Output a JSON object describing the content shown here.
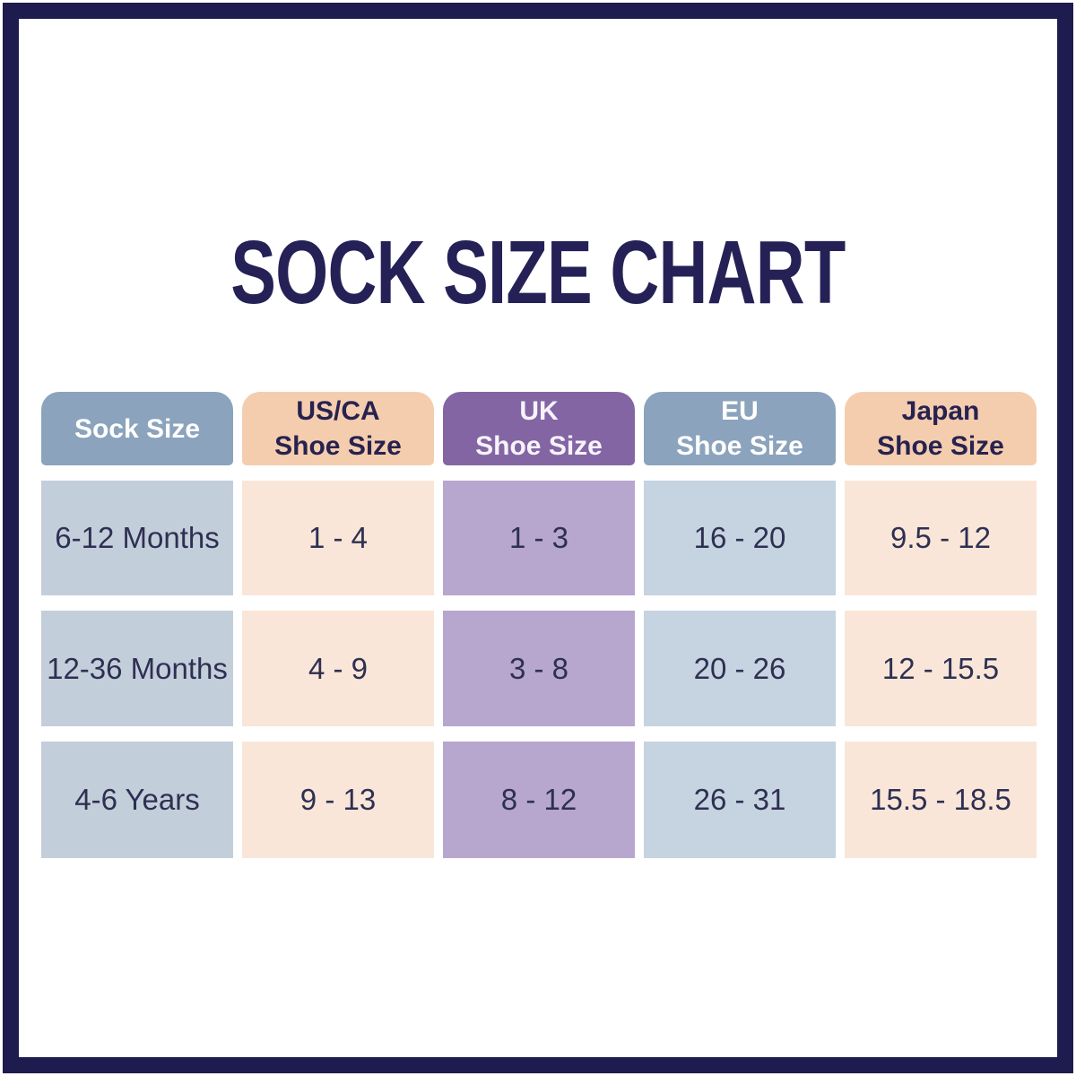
{
  "page": {
    "title": "SOCK SIZE CHART",
    "title_color": "#252157",
    "frame_color": "#1e1b4e",
    "background": "#ffffff"
  },
  "table": {
    "columns": [
      {
        "id": "sock-size",
        "header_lines": [
          "Sock Size"
        ],
        "header_bg": "#8ba3bc",
        "header_text": "#ffffff",
        "body_bg": "#c3cedb"
      },
      {
        "id": "usca-shoe-size",
        "header_lines": [
          "US/CA",
          "Shoe Size"
        ],
        "header_bg": "#f4cdaf",
        "header_text": "#27224f",
        "body_bg": "#f9e6d8"
      },
      {
        "id": "uk-shoe-size",
        "header_lines": [
          "UK",
          "Shoe Size"
        ],
        "header_bg": "#8465a4",
        "header_text": "#f7f3fa",
        "body_bg": "#b7a6cd"
      },
      {
        "id": "eu-shoe-size",
        "header_lines": [
          "EU",
          "Shoe Size"
        ],
        "header_bg": "#8ba3bc",
        "header_text": "#ffffff",
        "body_bg": "#c6d3e0"
      },
      {
        "id": "japan-shoe-size",
        "header_lines": [
          "Japan",
          "Shoe Size"
        ],
        "header_bg": "#f4cdaf",
        "header_text": "#27224f",
        "body_bg": "#f9e6d8"
      }
    ],
    "rows": [
      [
        "6-12 Months",
        "1 - 4",
        "1 - 3",
        "16 - 20",
        "9.5 - 12"
      ],
      [
        "12-36 Months",
        "4 - 9",
        "3 - 8",
        "20 - 26",
        "12 - 15.5"
      ],
      [
        "4-6 Years",
        "9 - 13",
        "8 - 12",
        "26 - 31",
        "15.5 - 18.5"
      ]
    ]
  },
  "chart_data": {
    "type": "table",
    "title": "SOCK SIZE CHART",
    "columns": [
      "Sock Size",
      "US/CA Shoe Size",
      "UK Shoe Size",
      "EU Shoe Size",
      "Japan Shoe Size"
    ],
    "rows": [
      [
        "6-12 Months",
        "1 - 4",
        "1 - 3",
        "16 - 20",
        "9.5 - 12"
      ],
      [
        "12-36 Months",
        "4 - 9",
        "3 - 8",
        "20 - 26",
        "12 - 15.5"
      ],
      [
        "4-6 Years",
        "9 - 13",
        "8 - 12",
        "26 - 31",
        "15.5 - 18.5"
      ]
    ]
  }
}
